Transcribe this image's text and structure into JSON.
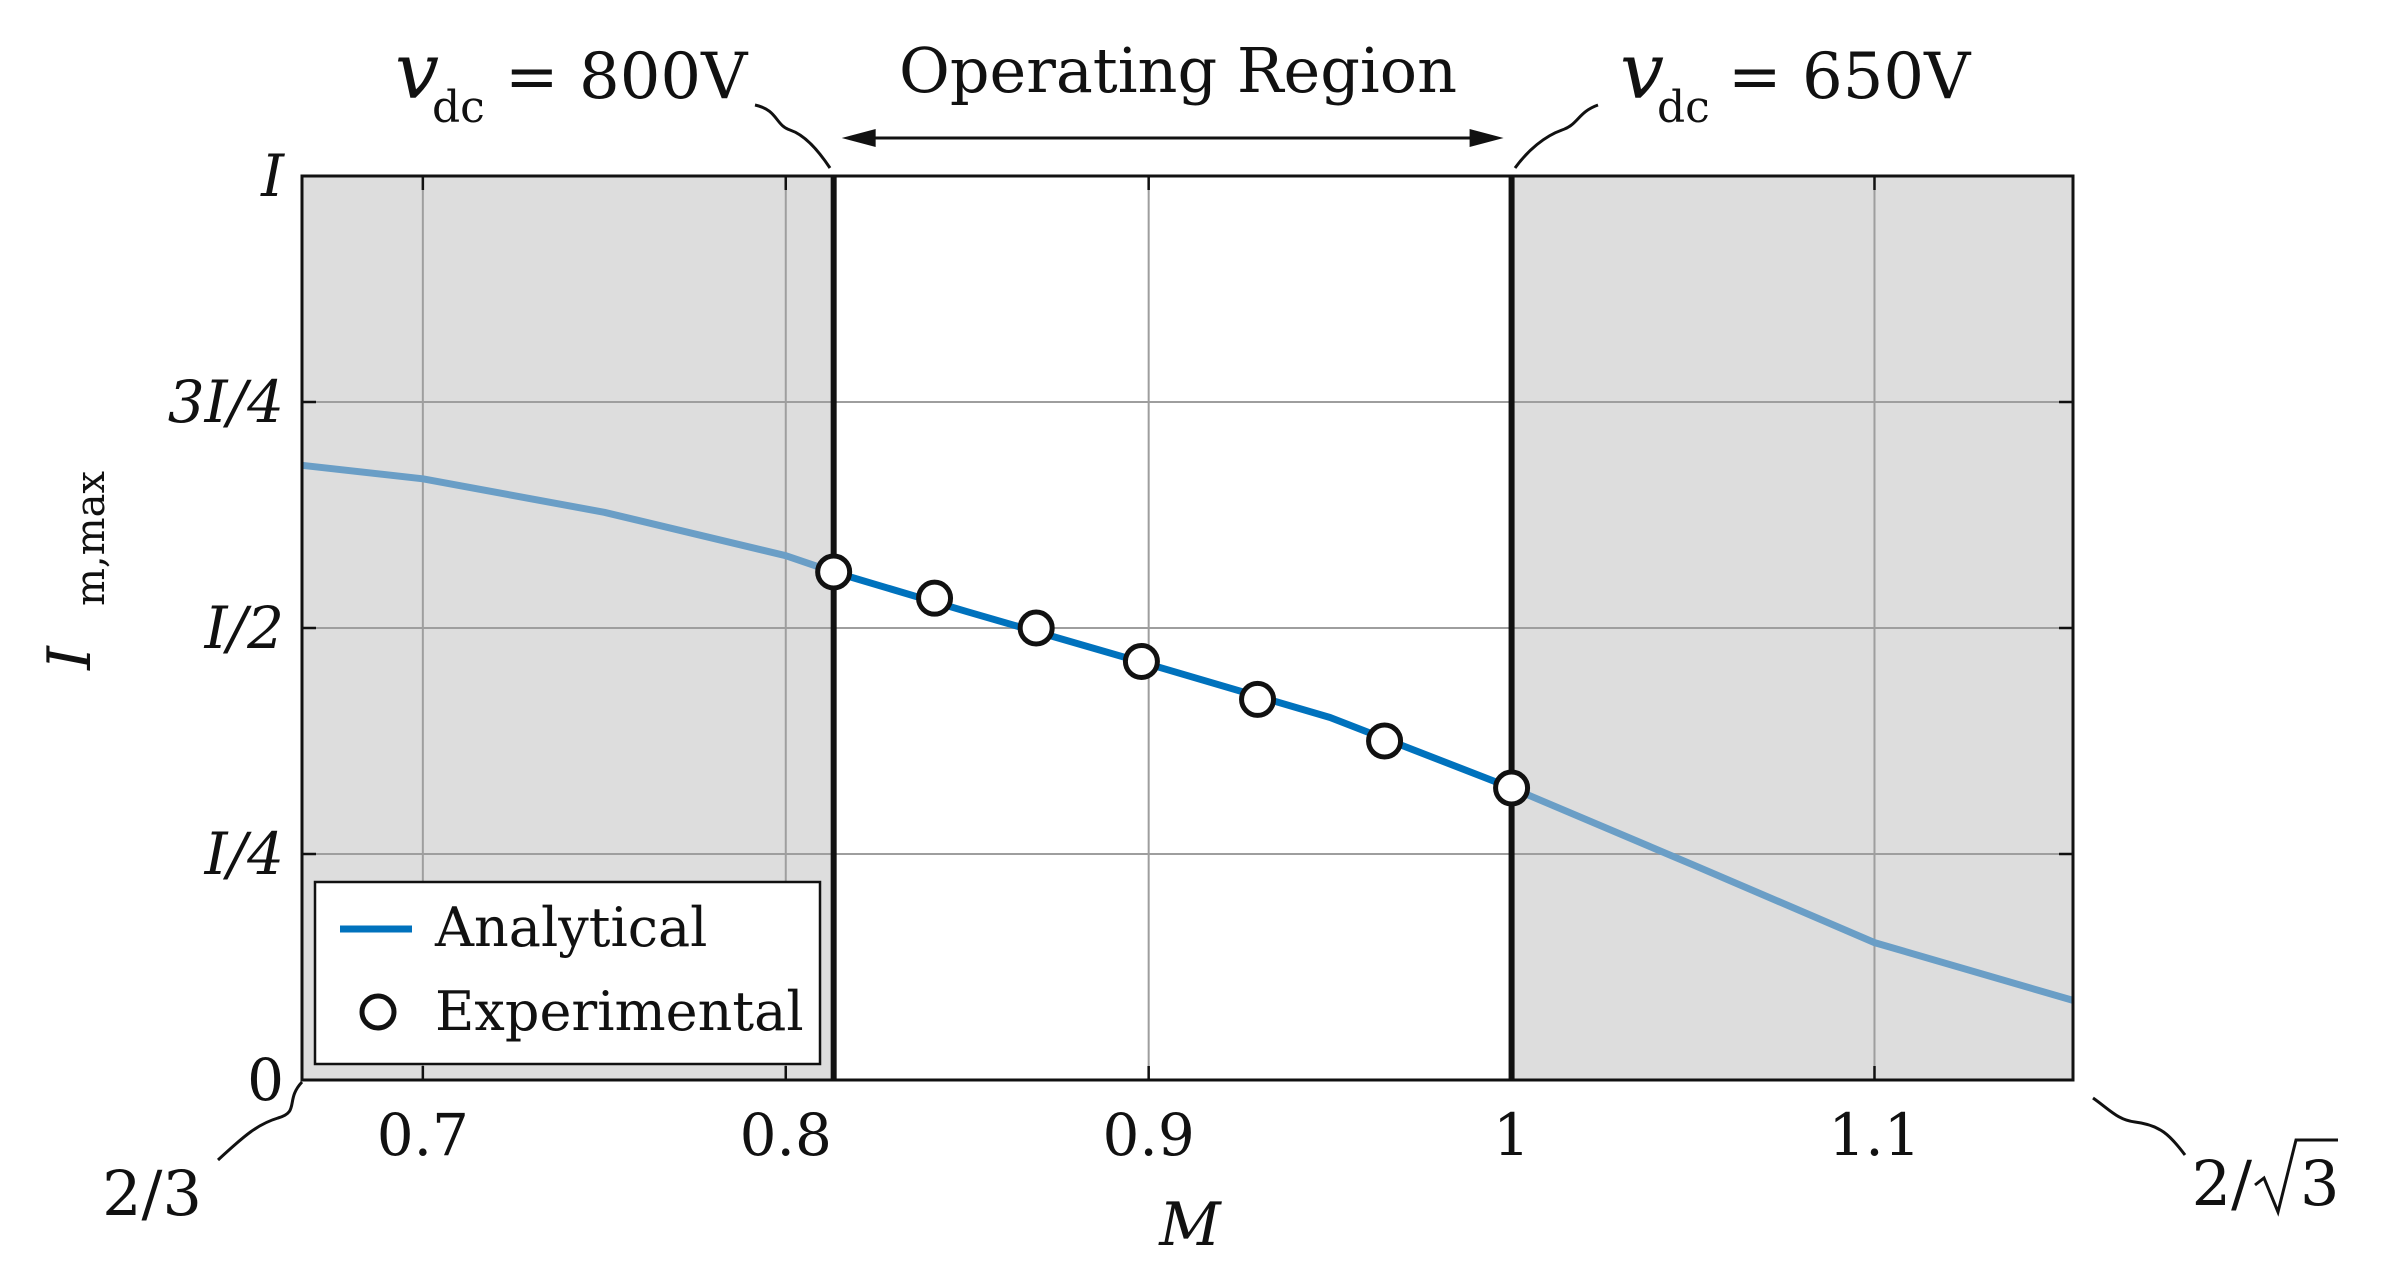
{
  "chart_data": {
    "type": "line",
    "title": "",
    "xlabel": "M",
    "ylabel": "I",
    "ylabel_sub": "m,max",
    "xlim": [
      0.6667,
      1.1547
    ],
    "ylim": [
      0,
      1
    ],
    "x_ticks": [
      {
        "value": 0.7,
        "label": "0.7"
      },
      {
        "value": 0.8,
        "label": "0.8"
      },
      {
        "value": 0.9,
        "label": "0.9"
      },
      {
        "value": 1.0,
        "label": "1"
      },
      {
        "value": 1.1,
        "label": "1.1"
      }
    ],
    "y_ticks": [
      {
        "value": 0,
        "label": "0"
      },
      {
        "value": 0.25,
        "label": "I/4"
      },
      {
        "value": 0.5,
        "label": "I/2"
      },
      {
        "value": 0.75,
        "label": "3I/4"
      },
      {
        "value": 1.0,
        "label": "I"
      }
    ],
    "x_end_labels": {
      "left": "2/3",
      "right_prefix": "2/",
      "right_radicand": "3"
    },
    "grid": true,
    "legend_position": "bottom-left",
    "operating_region": {
      "x_start": 0.8132,
      "x_end": 1.0,
      "label": "Operating Region",
      "left_annotation": {
        "symbol": "v",
        "sub": "dc",
        "text": "= 800V"
      },
      "right_annotation": {
        "symbol": "v",
        "sub": "dc",
        "text": "= 650V"
      }
    },
    "series": [
      {
        "name": "Analytical",
        "style": "line",
        "color": "#0072bd",
        "faded_color": "#6a9ec6",
        "x": [
          0.6667,
          0.7,
          0.75,
          0.8,
          0.8132,
          0.85,
          0.9,
          0.95,
          1.0,
          1.05,
          1.1,
          1.1547
        ],
        "y": [
          0.68,
          0.665,
          0.628,
          0.58,
          0.562,
          0.518,
          0.46,
          0.401,
          0.323,
          0.238,
          0.152,
          0.088
        ]
      },
      {
        "name": "Experimental",
        "style": "markers",
        "color": "#000000",
        "x": [
          0.8132,
          0.841,
          0.869,
          0.898,
          0.93,
          0.965,
          1.0
        ],
        "y": [
          0.562,
          0.533,
          0.5,
          0.463,
          0.421,
          0.375,
          0.323
        ]
      }
    ]
  },
  "colors": {
    "shaded_region": "#dddddd",
    "grid": "#9e9e9e",
    "axis": "#111111"
  }
}
